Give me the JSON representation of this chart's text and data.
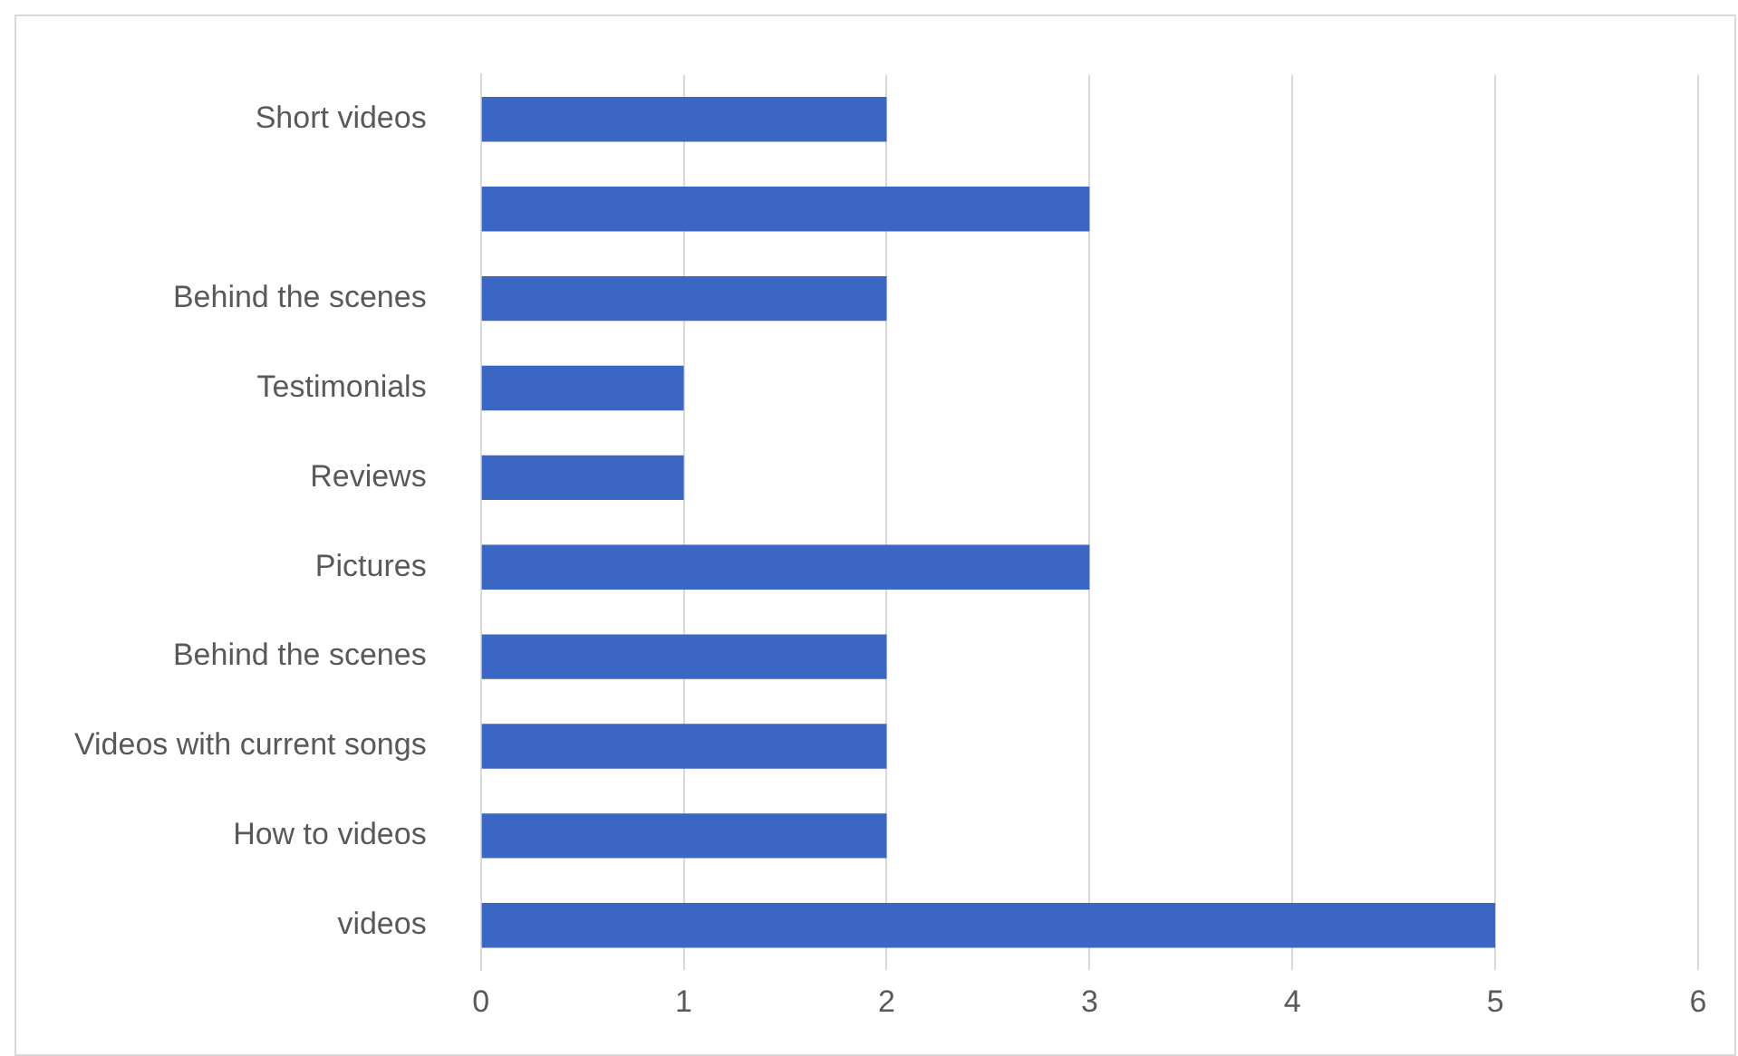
{
  "chart_data": {
    "type": "bar",
    "orientation": "horizontal",
    "categories": [
      "Short videos",
      null,
      "Behind the scenes",
      "Testimonials",
      "Reviews",
      "Pictures",
      "Behind the scenes",
      "Videos with current songs",
      "How to videos",
      "videos"
    ],
    "values": [
      2,
      3,
      2,
      1,
      1,
      3,
      2,
      2,
      2,
      5
    ],
    "color": "#3b66c4",
    "xlim": [
      0,
      6
    ],
    "xticks": [
      0,
      1,
      2,
      3,
      4,
      5,
      6
    ],
    "grid": "x",
    "legend": false
  }
}
